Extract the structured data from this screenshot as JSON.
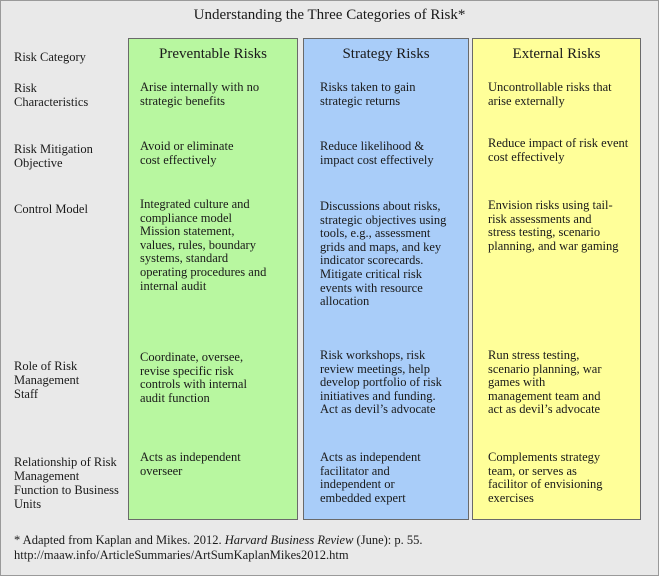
{
  "title": "Understanding the Three Categories of Risk*",
  "columns": [
    "Preventable Risks",
    "Strategy Risks",
    "External Risks"
  ],
  "colors": {
    "preventable": "#b8f7a0",
    "strategy": "#a9cdf9",
    "external": "#ffff99"
  },
  "row_label_header": "Risk Category",
  "rows": [
    {
      "label": "Risk Characteristics",
      "cells": [
        "Arise internally with no strategic benefits",
        "Risks taken to gain strategic returns",
        "Uncontrollable risks that arise externally"
      ]
    },
    {
      "label": "Risk Mitigation Objective",
      "cells": [
        "Avoid or eliminate cost effectively",
        "Reduce likelihood & impact cost effectively",
        "Reduce impact of risk event cost effectively"
      ]
    },
    {
      "label": "Control Model",
      "cells": [
        "Integrated culture and compliance model Mission statement, values, rules, boundary systems, standard operating procedures and internal audit",
        "Discussions about risks, strategic objectives using tools, e.g., assessment grids and maps, and key indicator scorecards. Mitigate critical risk events with resource allocation",
        "Envision risks using tail-risk assessments and stress testing, scenario planning, and war gaming"
      ]
    },
    {
      "label": "Role of Risk Management Staff",
      "cells": [
        "Coordinate, oversee, revise specific risk controls with internal audit function",
        "Risk workshops, risk review meetings, help develop portfolio of risk initiatives and funding.  Act as devil’s advocate",
        "Run stress testing, scenario planning, war games with management team and act as devil’s advocate"
      ]
    },
    {
      "label": "Relationship of Risk Management Function to Business Units",
      "cells": [
        "Acts as independent overseer",
        "Acts as independent facilitator and independent or embedded expert",
        "Complements strategy team, or serves as facilitor of envisioning exercises"
      ]
    }
  ],
  "footnote": {
    "prefix": "* Adapted from Kaplan and Mikes. 2012. ",
    "journal": "Harvard Business Review",
    "suffix": " (June): p. 55.",
    "url": "http://maaw.info/ArticleSummaries/ArtSumKaplanMikes2012.htm"
  }
}
